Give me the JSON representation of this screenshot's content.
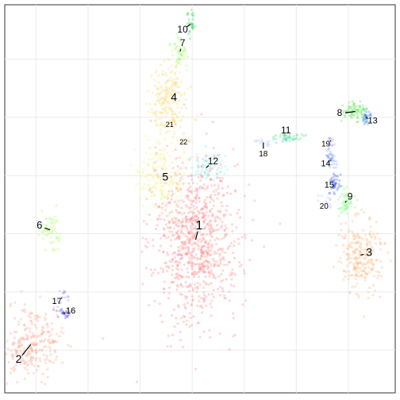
{
  "chart_data": {
    "type": "scatter",
    "title": "",
    "xlabel": "",
    "ylabel": "",
    "grid": true,
    "x_gridlines": [
      -9,
      -6,
      -3,
      0,
      3,
      6,
      9
    ],
    "y_gridlines": [
      -8,
      -5,
      -2,
      1,
      4,
      7
    ],
    "xlim": [
      -10.8,
      11.7
    ],
    "ylim": [
      -10.2,
      9.8
    ],
    "clusters": [
      {
        "label": "1",
        "color": "#ff8080",
        "size": 900,
        "cx": 0.2,
        "cy": -2.3,
        "sx": 1.25,
        "sy": 2.1,
        "label_x": 0.4,
        "label_y": -1.6,
        "font": 16
      },
      {
        "label": "2",
        "color": "#ff9a80",
        "size": 260,
        "cx": -9.3,
        "cy": -7.7,
        "sx": 0.85,
        "sy": 0.9,
        "label_x": -10.0,
        "label_y": -8.5,
        "font": 14
      },
      {
        "label": "3",
        "color": "#ffb070",
        "size": 240,
        "cx": 9.7,
        "cy": -3.1,
        "sx": 0.6,
        "sy": 1.0,
        "label_x": 10.2,
        "label_y": -3.0,
        "font": 14
      },
      {
        "label": "4",
        "color": "#ffd870",
        "size": 220,
        "cx": -1.3,
        "cy": 5.0,
        "sx": 0.55,
        "sy": 0.9,
        "label_x": -1.05,
        "label_y": 5.0,
        "font": 14
      },
      {
        "label": "5",
        "color": "#f3f280",
        "size": 220,
        "cx": -1.7,
        "cy": 0.9,
        "sx": 0.7,
        "sy": 0.9,
        "label_x": -1.55,
        "label_y": 0.9,
        "font": 14
      },
      {
        "label": "6",
        "color": "#a8ff60",
        "size": 60,
        "cx": -8.2,
        "cy": -1.8,
        "sx": 0.3,
        "sy": 0.5,
        "label_x": -8.8,
        "label_y": -1.6,
        "font": 13
      },
      {
        "label": "7",
        "color": "#90ff50",
        "size": 40,
        "cx": -0.7,
        "cy": 7.4,
        "sx": 0.2,
        "sy": 0.4,
        "label_x": -0.55,
        "label_y": 7.8,
        "font": 12
      },
      {
        "label": "8",
        "color": "#50e840",
        "size": 70,
        "cx": 9.4,
        "cy": 4.3,
        "sx": 0.35,
        "sy": 0.25,
        "label_x": 8.5,
        "label_y": 4.2,
        "font": 12
      },
      {
        "label": "9",
        "color": "#70ff70",
        "size": 45,
        "cx": 8.8,
        "cy": -0.4,
        "sx": 0.25,
        "sy": 0.35,
        "label_x": 9.1,
        "label_y": -0.1,
        "font": 12
      },
      {
        "label": "10",
        "color": "#30d860",
        "size": 30,
        "cx": -0.1,
        "cy": 8.8,
        "sx": 0.12,
        "sy": 0.4,
        "label_x": -0.55,
        "label_y": 8.5,
        "font": 12
      },
      {
        "label": "11",
        "color": "#40d890",
        "size": 45,
        "cx": 5.5,
        "cy": 3.0,
        "sx": 0.45,
        "sy": 0.12,
        "label_x": 5.4,
        "label_y": 3.3,
        "font": 12
      },
      {
        "label": "12",
        "color": "#80f0f0",
        "size": 70,
        "cx": 0.8,
        "cy": 1.4,
        "sx": 0.5,
        "sy": 0.4,
        "label_x": 1.2,
        "label_y": 1.7,
        "font": 12
      },
      {
        "label": "13",
        "color": "#3080f0",
        "size": 30,
        "cx": 10.0,
        "cy": 4.0,
        "sx": 0.15,
        "sy": 0.2,
        "label_x": 10.4,
        "label_y": 3.8,
        "font": 11
      },
      {
        "label": "14",
        "color": "#80a0ff",
        "size": 40,
        "cx": 8.0,
        "cy": 1.8,
        "sx": 0.15,
        "sy": 0.3,
        "label_x": 7.7,
        "label_y": 1.6,
        "font": 11
      },
      {
        "label": "15",
        "color": "#4060f0",
        "size": 40,
        "cx": 8.2,
        "cy": 0.6,
        "sx": 0.15,
        "sy": 0.3,
        "label_x": 7.9,
        "label_y": 0.5,
        "font": 11
      },
      {
        "label": "16",
        "color": "#5050e0",
        "size": 25,
        "cx": -7.4,
        "cy": -6.1,
        "sx": 0.2,
        "sy": 0.15,
        "label_x": -7.0,
        "label_y": -6.0,
        "font": 11
      },
      {
        "label": "17",
        "color": "#9090ff",
        "size": 15,
        "cx": -7.5,
        "cy": -5.3,
        "sx": 0.2,
        "sy": 0.2,
        "label_x": -7.8,
        "label_y": -5.5,
        "font": 11
      },
      {
        "label": "18",
        "color": "#a0c8ff",
        "size": 15,
        "cx": 4.1,
        "cy": 2.7,
        "sx": 0.3,
        "sy": 0.1,
        "label_x": 4.1,
        "label_y": 2.1,
        "font": 10
      },
      {
        "label": "19",
        "color": "#a0a0ff",
        "size": 15,
        "cx": 8.0,
        "cy": 2.8,
        "sx": 0.15,
        "sy": 0.3,
        "label_x": 7.7,
        "label_y": 2.6,
        "font": 10
      },
      {
        "label": "20",
        "color": "#c0c0ff",
        "size": 15,
        "cx": 7.8,
        "cy": -0.4,
        "sx": 0.25,
        "sy": 0.25,
        "label_x": 7.6,
        "label_y": -0.6,
        "font": 10
      },
      {
        "label": "21",
        "color": "#ffe8a0",
        "size": 15,
        "cx": -1.2,
        "cy": 3.6,
        "sx": 0.2,
        "sy": 0.25,
        "label_x": -1.3,
        "label_y": 3.6,
        "font": 9
      },
      {
        "label": "22",
        "color": "#f0f0b0",
        "size": 15,
        "cx": -0.4,
        "cy": 2.8,
        "sx": 0.2,
        "sy": 0.2,
        "label_x": -0.5,
        "label_y": 2.7,
        "font": 9
      }
    ]
  },
  "colors": {
    "panel_border": "#333333",
    "grid": "#ebebeb",
    "background": "#ffffff"
  }
}
